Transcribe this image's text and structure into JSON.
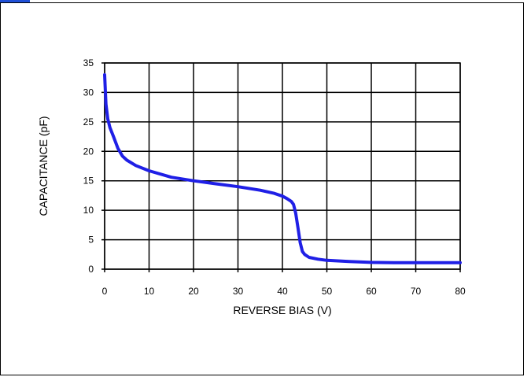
{
  "chart_data": {
    "type": "line",
    "title": "",
    "xlabel": "REVERSE BIAS (V)",
    "ylabel": "CAPACITANCE (pF)",
    "xlim": [
      0,
      80
    ],
    "ylim": [
      0,
      35
    ],
    "xticks": [
      0,
      10,
      20,
      30,
      40,
      50,
      60,
      70,
      80
    ],
    "yticks": [
      0,
      5,
      10,
      15,
      20,
      25,
      30,
      35
    ],
    "grid": true,
    "legend": "none",
    "line_color": "#1f1fe6",
    "series": [
      {
        "x": [
          0,
          0.3,
          0.7,
          1.2,
          2,
          3,
          4,
          5,
          7,
          10,
          15,
          20,
          25,
          30,
          35,
          38,
          40,
          41,
          42,
          42.5,
          43,
          43.5,
          44,
          44.5,
          45,
          46,
          48,
          50,
          55,
          60,
          65,
          70,
          75,
          80
        ],
        "values": [
          33,
          28,
          25.5,
          24,
          22.5,
          20.5,
          19.2,
          18.5,
          17.6,
          16.7,
          15.6,
          15,
          14.5,
          14,
          13.4,
          12.9,
          12.4,
          12,
          11.5,
          11,
          9.5,
          7,
          4.5,
          3,
          2.5,
          2,
          1.7,
          1.5,
          1.3,
          1.15,
          1.1,
          1.1,
          1.1,
          1.1
        ]
      }
    ]
  }
}
